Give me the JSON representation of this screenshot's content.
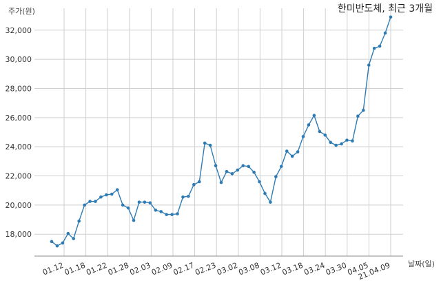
{
  "chart_data": {
    "type": "line",
    "title": "한미반도체, 최근 3개월",
    "xlabel": "날짜(일)",
    "ylabel": "주가(원)",
    "ylim": [
      16500,
      33500
    ],
    "yticks": [
      18000,
      20000,
      22000,
      24000,
      26000,
      28000,
      30000,
      32000
    ],
    "ytick_labels": [
      "18,000",
      "20,000",
      "22,000",
      "24,000",
      "26,000",
      "28,000",
      "30,000",
      "32,000"
    ],
    "xtick_labels": [
      "01.12",
      "01.18",
      "01.22",
      "01.28",
      "02.03",
      "02.09",
      "02.17",
      "02.23",
      "03.02",
      "03.08",
      "03.12",
      "03.18",
      "03.24",
      "03.30",
      "04.05",
      "21.04.09"
    ],
    "grid": true,
    "line_color": "#2e7bb4",
    "series": [
      {
        "values": [
          17500,
          17200,
          17400,
          18050,
          17700,
          18900,
          20000,
          20250,
          20250,
          20550,
          20700,
          20750,
          21050,
          20000,
          19800,
          18950,
          20200,
          20200,
          20150,
          19650,
          19550,
          19350,
          19350,
          19400,
          20550,
          20600,
          21400,
          21600,
          24250,
          24100,
          22700,
          21550,
          22300,
          22150,
          22400,
          22700,
          22650,
          22250,
          21600,
          20800,
          20200,
          21950,
          22650,
          23700,
          23350,
          23650,
          24700,
          25500,
          26150,
          25050,
          24800,
          24300,
          24100,
          24200,
          24450,
          24400,
          26100,
          26500,
          29600,
          30750,
          30900,
          31800,
          32900
        ]
      }
    ]
  }
}
